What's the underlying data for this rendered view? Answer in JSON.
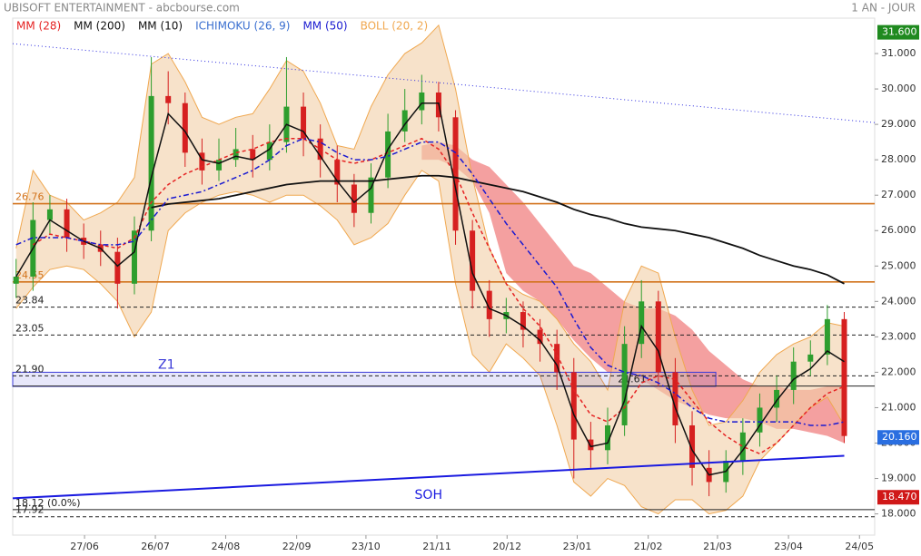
{
  "chart_data": {
    "type": "candlestick",
    "title": "UBISOFT ENTERTAINMENT - abcbourse.com",
    "subtitle": "1 AN - JOUR",
    "up_color": "#2e9e2e",
    "down_color": "#d62020",
    "xlim": [
      -0.2,
      50.8
    ],
    "ylim": [
      17.4,
      32.0
    ],
    "xticks": [
      {
        "value": 4.05,
        "label": "27/06"
      },
      {
        "value": 8.24,
        "label": "26/07"
      },
      {
        "value": 12.4,
        "label": "24/08"
      },
      {
        "value": 16.6,
        "label": "22/09"
      },
      {
        "value": 20.7,
        "label": "23/10"
      },
      {
        "value": 24.9,
        "label": "21/11"
      },
      {
        "value": 29.05,
        "label": "20/12"
      },
      {
        "value": 33.2,
        "label": "23/01"
      },
      {
        "value": 37.4,
        "label": "21/02"
      },
      {
        "value": 41.5,
        "label": "21/03"
      },
      {
        "value": 45.7,
        "label": "23/04"
      },
      {
        "value": 49.9,
        "label": "24/05"
      }
    ],
    "yticks": [
      {
        "value": 18,
        "label": "18.000"
      },
      {
        "value": 19,
        "label": "19.000"
      },
      {
        "value": 20,
        "label": "20.000"
      },
      {
        "value": 21,
        "label": "21.000"
      },
      {
        "value": 22,
        "label": "22.000"
      },
      {
        "value": 23,
        "label": "23.000"
      },
      {
        "value": 24,
        "label": "24.000"
      },
      {
        "value": 25,
        "label": "25.000"
      },
      {
        "value": 26,
        "label": "26.000"
      },
      {
        "value": 27,
        "label": "27.000"
      },
      {
        "value": 28,
        "label": "28.000"
      },
      {
        "value": 29,
        "label": "29.000"
      },
      {
        "value": 30,
        "label": "30.000"
      },
      {
        "value": 31,
        "label": "31.000"
      }
    ],
    "open": [
      24.5,
      24.7,
      26.3,
      26.6,
      25.8,
      25.6,
      25.4,
      24.5,
      26.0,
      29.8,
      29.6,
      28.2,
      27.7,
      28.0,
      28.3,
      28.0,
      28.5,
      29.5,
      28.6,
      28.0,
      27.3,
      26.5,
      27.5,
      28.8,
      29.4,
      29.9,
      29.2,
      26.0,
      24.3,
      23.5,
      23.7,
      23.2,
      22.8,
      22.0,
      20.1,
      19.8,
      20.5,
      22.8,
      24.0,
      22.0,
      20.5,
      19.3,
      18.9,
      19.5,
      20.3,
      21.0,
      21.5,
      22.3,
      22.5,
      23.5
    ],
    "high": [
      25.2,
      26.8,
      27.0,
      26.9,
      26.2,
      26.0,
      25.8,
      26.4,
      30.9,
      30.5,
      29.9,
      28.6,
      28.6,
      28.9,
      28.7,
      29.0,
      30.9,
      29.9,
      29.0,
      28.4,
      27.6,
      27.9,
      29.3,
      30.0,
      30.4,
      30.2,
      29.4,
      26.3,
      24.6,
      24.1,
      24.0,
      23.5,
      23.2,
      22.4,
      20.6,
      21.0,
      23.3,
      24.6,
      24.3,
      22.4,
      20.9,
      19.8,
      19.8,
      20.7,
      21.4,
      21.9,
      22.7,
      22.9,
      23.9,
      23.7
    ],
    "low": [
      24.1,
      24.3,
      25.9,
      25.4,
      25.2,
      25.0,
      23.8,
      24.2,
      25.7,
      29.0,
      27.8,
      27.3,
      27.4,
      27.8,
      27.5,
      27.7,
      28.2,
      28.1,
      27.5,
      26.8,
      26.1,
      26.2,
      27.2,
      28.5,
      29.0,
      28.8,
      25.6,
      23.8,
      23.0,
      23.1,
      22.7,
      22.3,
      21.5,
      19.0,
      19.3,
      19.4,
      20.2,
      22.4,
      21.6,
      20.0,
      18.8,
      18.5,
      18.6,
      19.1,
      19.9,
      20.6,
      21.1,
      21.9,
      22.2,
      20.0
    ],
    "close": [
      24.7,
      26.3,
      26.6,
      25.8,
      25.6,
      25.4,
      24.5,
      26.0,
      29.8,
      29.6,
      28.2,
      27.7,
      28.0,
      28.3,
      28.0,
      28.5,
      29.5,
      28.6,
      28.0,
      27.3,
      26.5,
      27.5,
      28.8,
      29.4,
      29.9,
      29.2,
      26.0,
      24.3,
      23.5,
      23.7,
      23.2,
      22.8,
      22.0,
      20.1,
      19.8,
      20.5,
      22.8,
      24.0,
      22.0,
      20.5,
      19.3,
      18.9,
      19.5,
      20.3,
      21.0,
      21.5,
      22.3,
      22.5,
      23.5,
      20.2
    ],
    "series": [
      {
        "name": "MM (28)",
        "color": "#e52222",
        "kind": "line",
        "dash": "dashed",
        "values": [
          null,
          25.6,
          25.9,
          25.8,
          25.7,
          25.6,
          25.5,
          25.8,
          26.8,
          27.3,
          27.6,
          27.8,
          28.0,
          28.2,
          28.3,
          28.5,
          28.6,
          28.6,
          28.3,
          28.0,
          27.9,
          28.0,
          28.2,
          28.4,
          28.6,
          28.3,
          27.6,
          26.5,
          25.5,
          24.5,
          23.8,
          23.3,
          22.5,
          21.5,
          20.8,
          20.6,
          21.0,
          21.7,
          21.9,
          21.8,
          21.2,
          20.6,
          20.2,
          19.9,
          19.7,
          20.0,
          20.5,
          21.0,
          21.4,
          21.6
        ]
      },
      {
        "name": "MM (200)",
        "color": "#111111",
        "kind": "line",
        "dash": "solid",
        "values": [
          null,
          null,
          null,
          null,
          null,
          null,
          null,
          null,
          26.65,
          26.75,
          26.8,
          26.85,
          26.9,
          27.0,
          27.1,
          27.2,
          27.3,
          27.35,
          27.4,
          27.4,
          27.4,
          27.4,
          27.45,
          27.5,
          27.55,
          27.55,
          27.5,
          27.4,
          27.3,
          27.2,
          27.1,
          26.95,
          26.8,
          26.6,
          26.45,
          26.35,
          26.2,
          26.1,
          26.05,
          26.0,
          25.9,
          25.8,
          25.65,
          25.5,
          25.3,
          25.15,
          25.0,
          24.9,
          24.75,
          24.5
        ]
      },
      {
        "name": "MM (10)",
        "color": "#111111",
        "kind": "line",
        "dash": "solid",
        "values": [
          24.7,
          25.5,
          26.3,
          26.0,
          25.7,
          25.5,
          25.0,
          25.4,
          27.5,
          29.3,
          28.8,
          28.0,
          27.9,
          28.1,
          28.0,
          28.3,
          29.0,
          28.8,
          28.1,
          27.4,
          26.8,
          27.2,
          28.3,
          29.0,
          29.6,
          29.6,
          27.2,
          24.8,
          23.8,
          23.6,
          23.3,
          22.9,
          22.2,
          20.8,
          19.9,
          20.0,
          21.2,
          23.3,
          22.6,
          21.0,
          19.8,
          19.1,
          19.2,
          19.8,
          20.5,
          21.2,
          21.8,
          22.1,
          22.6,
          22.3
        ]
      },
      {
        "name": "ICHIMOKU (26, 9)",
        "color": "#3a6fd0",
        "kind": "band",
        "fill": "#f08080",
        "upper": [
          null,
          null,
          null,
          null,
          null,
          null,
          null,
          null,
          null,
          null,
          null,
          null,
          null,
          null,
          null,
          null,
          null,
          null,
          null,
          null,
          null,
          null,
          null,
          null,
          28.4,
          28.5,
          28.4,
          28.0,
          27.8,
          27.3,
          26.8,
          26.2,
          25.6,
          25.0,
          24.8,
          24.4,
          24.0,
          23.8,
          23.8,
          23.6,
          23.2,
          22.6,
          22.2,
          21.8,
          21.6,
          21.6,
          21.5,
          21.5,
          21.6,
          21.6
        ],
        "lower": [
          null,
          null,
          null,
          null,
          null,
          null,
          null,
          null,
          null,
          null,
          null,
          null,
          null,
          null,
          null,
          null,
          null,
          null,
          null,
          null,
          null,
          null,
          null,
          null,
          28.0,
          28.0,
          27.8,
          27.4,
          26.5,
          24.8,
          24.3,
          24.0,
          23.5,
          22.9,
          22.4,
          22.0,
          22.0,
          21.8,
          21.5,
          21.2,
          21.0,
          20.8,
          20.7,
          20.7,
          20.6,
          20.4,
          20.4,
          20.3,
          20.2,
          20.0
        ]
      },
      {
        "name": "MM (50)",
        "color": "#1a1ad0",
        "kind": "line",
        "dash": "dashdot",
        "values": [
          25.6,
          25.8,
          25.8,
          25.8,
          25.7,
          25.6,
          25.6,
          25.7,
          26.3,
          26.9,
          27.0,
          27.1,
          27.3,
          27.5,
          27.7,
          28.0,
          28.4,
          28.6,
          28.5,
          28.2,
          28.0,
          28.0,
          28.1,
          28.3,
          28.5,
          28.5,
          28.2,
          27.6,
          26.9,
          26.2,
          25.6,
          25.0,
          24.4,
          23.5,
          22.7,
          22.2,
          22.0,
          21.9,
          21.7,
          21.4,
          21.0,
          20.7,
          20.6,
          20.6,
          20.6,
          20.6,
          20.6,
          20.5,
          20.5,
          20.6
        ]
      },
      {
        "name": "BOLL (20, 2)",
        "color": "#f0a850",
        "kind": "band",
        "fill": "#f2cfa6",
        "upper": [
          25.5,
          27.7,
          27.0,
          26.8,
          26.3,
          26.5,
          26.8,
          27.5,
          30.7,
          31.0,
          30.2,
          29.2,
          29.0,
          29.2,
          29.3,
          30.0,
          30.8,
          30.5,
          29.6,
          28.4,
          28.3,
          29.5,
          30.4,
          31.0,
          31.3,
          31.8,
          30.0,
          27.5,
          25.5,
          24.5,
          24.2,
          24.0,
          23.5,
          22.8,
          22.3,
          21.5,
          24.0,
          25.0,
          24.8,
          23.0,
          21.5,
          20.5,
          20.6,
          21.2,
          22.0,
          22.5,
          22.8,
          23.0,
          23.4,
          23.3
        ],
        "lower": [
          23.8,
          24.4,
          24.9,
          25.0,
          24.9,
          24.5,
          24.0,
          23.0,
          23.7,
          26.0,
          26.5,
          26.8,
          27.0,
          27.1,
          27.0,
          26.8,
          27.0,
          27.0,
          26.7,
          26.3,
          25.6,
          25.8,
          26.2,
          27.0,
          27.7,
          27.4,
          24.5,
          22.5,
          22.0,
          22.8,
          22.4,
          21.9,
          20.5,
          18.9,
          18.5,
          19.0,
          18.8,
          18.2,
          18.0,
          18.4,
          18.4,
          18.0,
          18.1,
          18.5,
          19.5,
          20.0,
          20.5,
          21.0,
          21.3,
          20.5
        ]
      }
    ],
    "levels": [
      {
        "value": 26.76,
        "label": "26.76",
        "color": "#d2731c",
        "dash": "solid"
      },
      {
        "value": 24.55,
        "label": "24.55",
        "color": "#d2731c",
        "dash": "solid"
      },
      {
        "value": 23.84,
        "label": "23.84",
        "color": "#222222",
        "dash": "dashed"
      },
      {
        "value": 23.05,
        "label": "23.05",
        "color": "#222222",
        "dash": "dashed"
      },
      {
        "value": 21.9,
        "label": "21.90",
        "color": "#222222",
        "dash": "dashed"
      },
      {
        "value": 21.61,
        "label": "21.61",
        "color": "#222222",
        "dash": "solid"
      },
      {
        "value": 18.12,
        "label": "18.12 (0.0%)",
        "color": "#222222",
        "dash": "solid"
      },
      {
        "value": 17.92,
        "label": "17.92",
        "color": "#222222",
        "dash": "dashed"
      }
    ],
    "zones": [
      {
        "label": "Z1",
        "xlim": [
          -0.2,
          41.4
        ],
        "ylim": [
          21.6,
          22.0
        ],
        "color": "#3a3ad8"
      }
    ],
    "trendlines": [
      {
        "x": [
          -0.2,
          50.8
        ],
        "y": [
          31.28,
          29.05
        ],
        "color": "#2a2ae0",
        "dash": "dotted"
      },
      {
        "label": "SOH",
        "x": [
          -0.2,
          49.0
        ],
        "y": [
          18.44,
          19.64
        ],
        "color": "#1a1ae0",
        "dash": "solid"
      }
    ],
    "price_tags": [
      {
        "value": 31.6,
        "label": "31.600",
        "color": "#1f8a1f"
      },
      {
        "value": 20.16,
        "label": "20.160",
        "color": "#2a6ee0"
      },
      {
        "value": 18.47,
        "label": "18.470",
        "color": "#d01818"
      }
    ]
  }
}
